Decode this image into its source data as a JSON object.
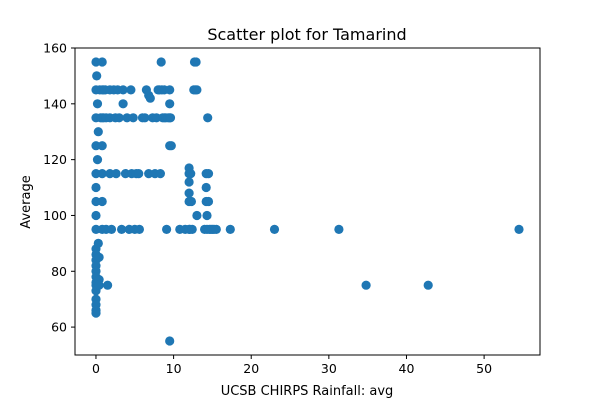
{
  "chart_data": {
    "type": "scatter",
    "title": "Scatter plot for Tamarind",
    "xlabel": "UCSB CHIRPS Rainfall: avg",
    "ylabel": "Average",
    "xlim": [
      -2.7,
      57.2
    ],
    "ylim": [
      50,
      160
    ],
    "xticks": [
      0,
      10,
      20,
      30,
      40,
      50
    ],
    "yticks": [
      60,
      80,
      100,
      120,
      140,
      160
    ],
    "grid": false,
    "marker_color": "#1f77b4",
    "points": [
      [
        0,
        155
      ],
      [
        0,
        145
      ],
      [
        0,
        135
      ],
      [
        0,
        125
      ],
      [
        0,
        115
      ],
      [
        0,
        110
      ],
      [
        0,
        105
      ],
      [
        0,
        100
      ],
      [
        0,
        95
      ],
      [
        0,
        88
      ],
      [
        0,
        86
      ],
      [
        0,
        84
      ],
      [
        0,
        82
      ],
      [
        0,
        80
      ],
      [
        0,
        78
      ],
      [
        0,
        76
      ],
      [
        0,
        75
      ],
      [
        0,
        73
      ],
      [
        0,
        70
      ],
      [
        0,
        68
      ],
      [
        0,
        66
      ],
      [
        0,
        65
      ],
      [
        0.1,
        150
      ],
      [
        0.2,
        140
      ],
      [
        0.3,
        130
      ],
      [
        0.2,
        120
      ],
      [
        0.3,
        90
      ],
      [
        0.4,
        85
      ],
      [
        0.4,
        77
      ],
      [
        0.4,
        75
      ],
      [
        0.5,
        145
      ],
      [
        0.6,
        135
      ],
      [
        0.8,
        155
      ],
      [
        0.8,
        145
      ],
      [
        0.8,
        135
      ],
      [
        0.8,
        125
      ],
      [
        0.8,
        115
      ],
      [
        0.8,
        105
      ],
      [
        0.8,
        95
      ],
      [
        1.0,
        145
      ],
      [
        1.0,
        135
      ],
      [
        1.2,
        145
      ],
      [
        1.3,
        135
      ],
      [
        1.3,
        95
      ],
      [
        1.5,
        75
      ],
      [
        1.8,
        145
      ],
      [
        1.8,
        135
      ],
      [
        1.8,
        115
      ],
      [
        2.0,
        95
      ],
      [
        2.3,
        145
      ],
      [
        2.5,
        135
      ],
      [
        2.6,
        115
      ],
      [
        2.8,
        145
      ],
      [
        3.0,
        135
      ],
      [
        3.3,
        95
      ],
      [
        3.5,
        140
      ],
      [
        3.5,
        145
      ],
      [
        3.8,
        115
      ],
      [
        4.0,
        135
      ],
      [
        4.3,
        95
      ],
      [
        4.5,
        145
      ],
      [
        4.6,
        115
      ],
      [
        4.8,
        135
      ],
      [
        5.0,
        95
      ],
      [
        5.2,
        115
      ],
      [
        5.5,
        115
      ],
      [
        5.6,
        95
      ],
      [
        6.0,
        135
      ],
      [
        6.3,
        135
      ],
      [
        6.5,
        145
      ],
      [
        6.8,
        115
      ],
      [
        6.8,
        143
      ],
      [
        7.0,
        142
      ],
      [
        7.3,
        135
      ],
      [
        7.6,
        115
      ],
      [
        7.8,
        135
      ],
      [
        8.0,
        145
      ],
      [
        8.2,
        145
      ],
      [
        8.3,
        115
      ],
      [
        8.4,
        155
      ],
      [
        8.5,
        145
      ],
      [
        8.6,
        135
      ],
      [
        8.8,
        145
      ],
      [
        8.8,
        135
      ],
      [
        9.0,
        135
      ],
      [
        9.1,
        95
      ],
      [
        9.3,
        135
      ],
      [
        9.5,
        125
      ],
      [
        9.5,
        135
      ],
      [
        9.5,
        145
      ],
      [
        9.5,
        140
      ],
      [
        9.6,
        135
      ],
      [
        9.7,
        125
      ],
      [
        9.5,
        55
      ],
      [
        10.8,
        95
      ],
      [
        11.5,
        95
      ],
      [
        12.0,
        95
      ],
      [
        12.0,
        115
      ],
      [
        12.0,
        117
      ],
      [
        12.0,
        112
      ],
      [
        12.0,
        108
      ],
      [
        12.0,
        105
      ],
      [
        12.1,
        95
      ],
      [
        12.2,
        115
      ],
      [
        12.3,
        105
      ],
      [
        12.4,
        95
      ],
      [
        12.6,
        145
      ],
      [
        12.7,
        155
      ],
      [
        12.8,
        145
      ],
      [
        12.9,
        155
      ],
      [
        13.0,
        145
      ],
      [
        13.0,
        100
      ],
      [
        14.0,
        95
      ],
      [
        14.2,
        115
      ],
      [
        14.2,
        110
      ],
      [
        14.2,
        105
      ],
      [
        14.3,
        100
      ],
      [
        14.3,
        95
      ],
      [
        14.4,
        135
      ],
      [
        14.5,
        115
      ],
      [
        14.5,
        105
      ],
      [
        14.6,
        95
      ],
      [
        14.8,
        95
      ],
      [
        15.0,
        95
      ],
      [
        15.2,
        95
      ],
      [
        15.5,
        95
      ],
      [
        17.3,
        95
      ],
      [
        23.0,
        95
      ],
      [
        31.3,
        95
      ],
      [
        34.8,
        75
      ],
      [
        42.8,
        75
      ],
      [
        54.5,
        95
      ]
    ]
  }
}
